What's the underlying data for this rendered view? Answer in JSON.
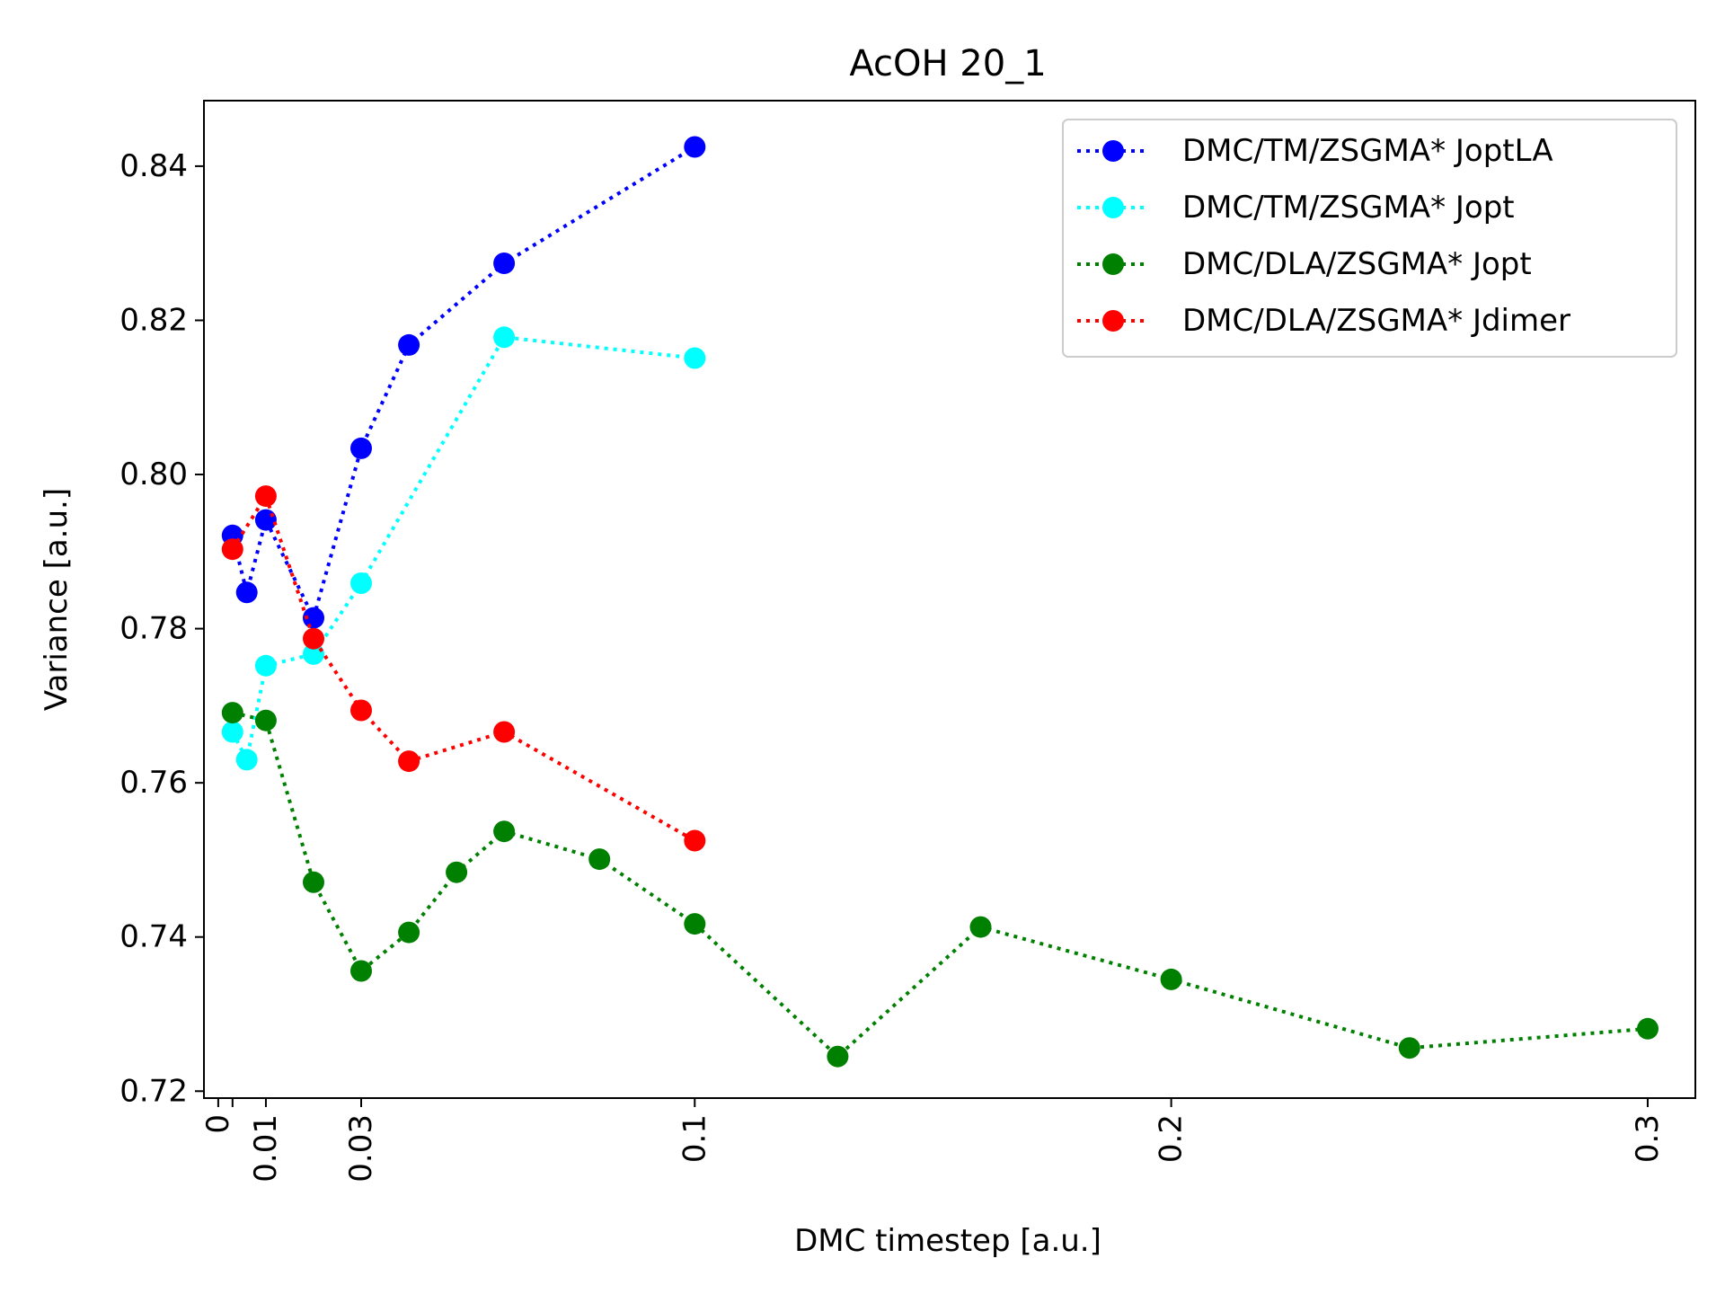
{
  "chart_data": {
    "type": "line",
    "title": "AcOH 20_1",
    "xlabel": "DMC timestep [a.u.]",
    "ylabel": "Variance [a.u.]",
    "xlim": [
      -0.003,
      0.31
    ],
    "ylim": [
      0.7191,
      0.8485
    ],
    "xticks": [
      {
        "value": 0,
        "label": "0"
      },
      {
        "value": 0.003,
        "label": ""
      },
      {
        "value": 0.01,
        "label": "0.01"
      },
      {
        "value": 0.03,
        "label": "0.03"
      },
      {
        "value": 0.1,
        "label": "0.1"
      },
      {
        "value": 0.2,
        "label": "0.2"
      },
      {
        "value": 0.3,
        "label": "0.3"
      }
    ],
    "yticks": [
      {
        "value": 0.72,
        "label": "0.72"
      },
      {
        "value": 0.74,
        "label": "0.74"
      },
      {
        "value": 0.76,
        "label": "0.76"
      },
      {
        "value": 0.78,
        "label": "0.78"
      },
      {
        "value": 0.8,
        "label": "0.80"
      },
      {
        "value": 0.82,
        "label": "0.82"
      },
      {
        "value": 0.84,
        "label": "0.84"
      }
    ],
    "grid": false,
    "legend_position": "top-right",
    "series": [
      {
        "name": "DMC/TM/ZSGMA* JoptLA",
        "color": "#0000ff",
        "x": [
          0.003,
          0.006,
          0.01,
          0.02,
          0.03,
          0.04,
          0.06,
          0.1
        ],
        "y": [
          0.7921,
          0.7847,
          0.7941,
          0.7814,
          0.8034,
          0.8168,
          0.8274,
          0.8425
        ]
      },
      {
        "name": "DMC/TM/ZSGMA* Jopt",
        "color": "#00ffff",
        "x": [
          0.003,
          0.006,
          0.01,
          0.02,
          0.03,
          0.06,
          0.1
        ],
        "y": [
          0.7666,
          0.763,
          0.7752,
          0.7767,
          0.7859,
          0.8178,
          0.8151
        ]
      },
      {
        "name": "DMC/DLA/ZSGMA* Jopt",
        "color": "#008000",
        "x": [
          0.003,
          0.01,
          0.02,
          0.03,
          0.04,
          0.05,
          0.06,
          0.08,
          0.1,
          0.13,
          0.16,
          0.2,
          0.25,
          0.3
        ],
        "y": [
          0.7691,
          0.7681,
          0.7471,
          0.7356,
          0.7406,
          0.7484,
          0.7537,
          0.7501,
          0.7417,
          0.7245,
          0.7413,
          0.7345,
          0.7256,
          0.7281
        ]
      },
      {
        "name": "DMC/DLA/ZSGMA* Jdimer",
        "color": "#ff0000",
        "x": [
          0.003,
          0.01,
          0.02,
          0.03,
          0.04,
          0.06,
          0.1
        ],
        "y": [
          0.7903,
          0.7972,
          0.7787,
          0.7694,
          0.7628,
          0.7666,
          0.7525
        ]
      }
    ]
  }
}
